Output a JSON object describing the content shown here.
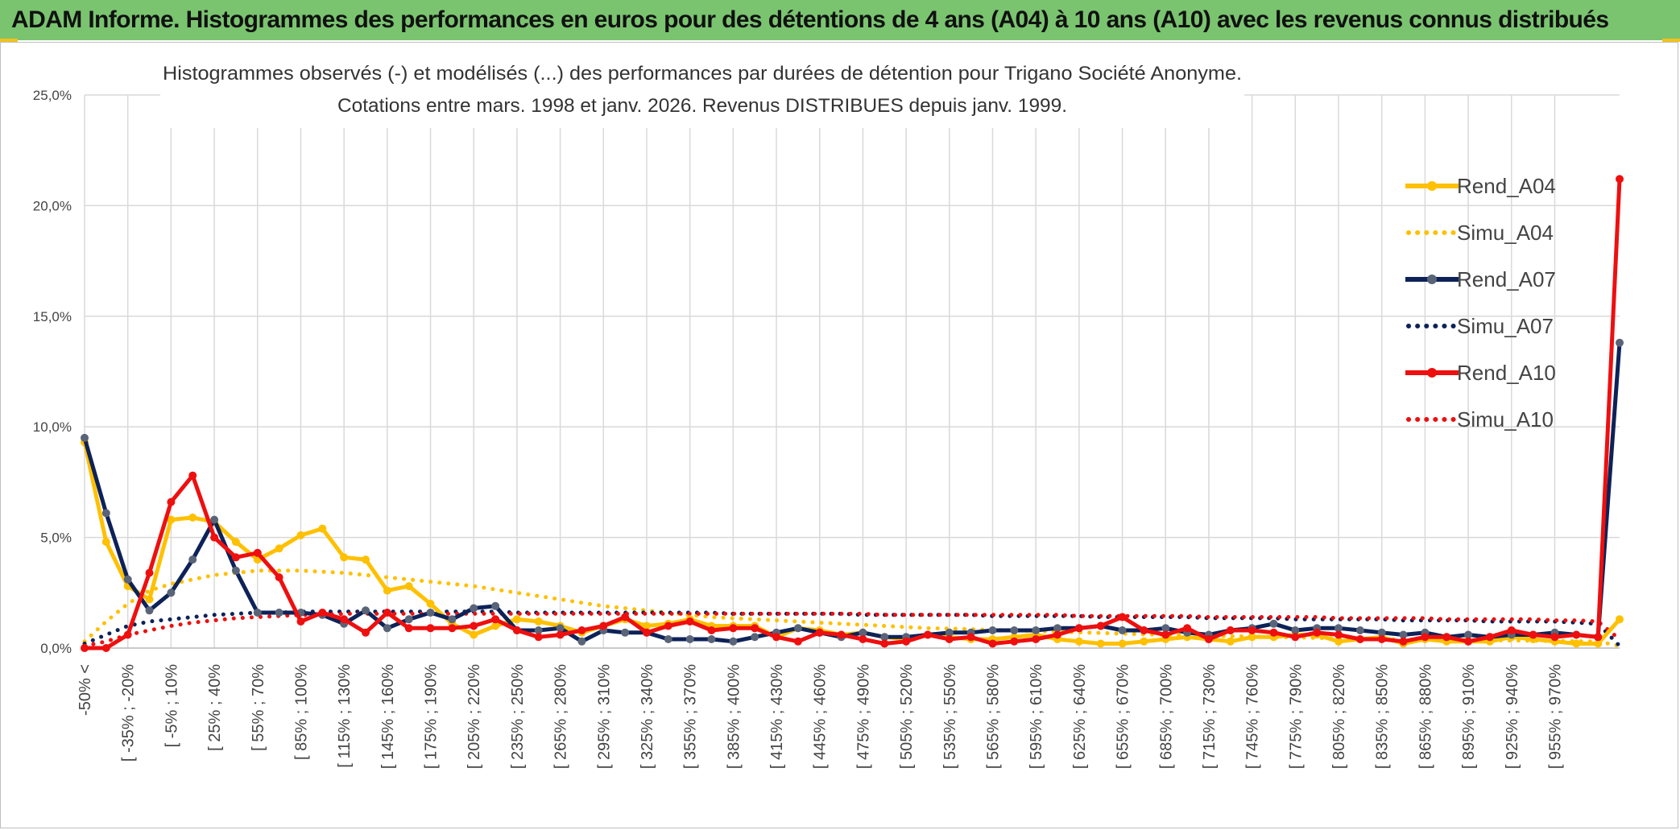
{
  "header": {
    "title": "ADAM Informe. Histogrammes des performances en euros pour des détentions de 4 ans (A04) à 10 ans (A10) avec les revenus connus distribués"
  },
  "colors": {
    "header_band": "#7ac470",
    "A04": "#ffc000",
    "A07": "#0d2258",
    "A10": "#ee0f0f",
    "grid": "#d9d9d9"
  },
  "chart_data": {
    "type": "line",
    "title_line1": "Histogrammes observés (-) et modélisés (...) des performances par durées de détention pour Trigano Société Anonyme.",
    "title_line2": "Cotations entre mars. 1998 et janv. 2026. Revenus DISTRIBUES depuis janv. 1999.",
    "ylim": [
      0,
      25
    ],
    "y_ticks": [
      "0,0%",
      "5,0%",
      "10,0%",
      "15,0%",
      "20,0%",
      "25,0%"
    ],
    "grid": true,
    "legend_position": "right",
    "x_labels_shown": [
      "-50% <",
      "[ -35% ; -20%",
      "[ -5% ; 10%",
      "[ 25% ; 40%",
      "[ 55% ; 70%",
      "[ 85% ; 100%",
      "[ 115% ; 130%",
      "[ 145% ; 160%",
      "[ 175% ; 190%",
      "[ 205% ; 220%",
      "[ 235% ; 250%",
      "[ 265% ; 280%",
      "[ 295% ; 310%",
      "[ 325% ; 340%",
      "[ 355% ; 370%",
      "[ 385% ; 400%",
      "[ 415% ; 430%",
      "[ 445% ; 460%",
      "[ 475% ; 490%",
      "[ 505% ; 520%",
      "[ 535% ; 550%",
      "[ 565% ; 580%",
      "[ 595% ; 610%",
      "[ 625% ; 640%",
      "[ 655% ; 670%",
      "[ 685% ; 700%",
      "[ 715% ; 730%",
      "[ 745% ; 760%",
      "[ 775% ; 790%",
      "[ 805% ; 820%",
      "[ 835% ; 850%",
      "[ 865% ; 880%",
      "[ 895% ; 910%",
      "[ 925% ; 940%",
      "[ 955% ; 970%"
    ],
    "categories_count": 72,
    "series": [
      {
        "name": "Rend_A04",
        "style": "solid",
        "color": "#ffc000",
        "values": [
          9.3,
          4.8,
          2.8,
          2.2,
          5.8,
          5.9,
          5.7,
          4.8,
          4.0,
          4.5,
          5.1,
          5.4,
          4.1,
          4.0,
          2.6,
          2.8,
          2.0,
          1.1,
          0.6,
          1.0,
          1.3,
          1.2,
          1.0,
          0.7,
          1.0,
          1.3,
          1.0,
          1.1,
          1.3,
          1.0,
          1.0,
          1.0,
          0.5,
          0.9,
          0.8,
          0.6,
          0.7,
          0.5,
          0.4,
          0.6,
          0.5,
          0.4,
          0.4,
          0.5,
          0.6,
          0.4,
          0.3,
          0.2,
          0.2,
          0.3,
          0.4,
          0.5,
          0.4,
          0.3,
          0.5,
          0.5,
          0.6,
          0.6,
          0.3,
          0.4,
          0.5,
          0.2,
          0.4,
          0.3,
          0.3,
          0.3,
          0.5,
          0.4,
          0.3,
          0.2,
          0.2,
          1.3
        ]
      },
      {
        "name": "Simu_A04",
        "style": "dotted",
        "color": "#ffc000",
        "values": [
          0.3,
          1.2,
          2.0,
          2.6,
          2.9,
          3.1,
          3.3,
          3.4,
          3.5,
          3.5,
          3.5,
          3.45,
          3.4,
          3.3,
          3.2,
          3.1,
          3.0,
          2.9,
          2.8,
          2.65,
          2.5,
          2.35,
          2.2,
          2.05,
          1.9,
          1.8,
          1.7,
          1.6,
          1.5,
          1.4,
          1.35,
          1.3,
          1.25,
          1.2,
          1.15,
          1.1,
          1.05,
          1.0,
          0.95,
          0.9,
          0.88,
          0.85,
          0.82,
          0.8,
          0.77,
          0.74,
          0.71,
          0.68,
          0.65,
          0.62,
          0.6,
          0.58,
          0.56,
          0.54,
          0.52,
          0.5,
          0.48,
          0.46,
          0.44,
          0.42,
          0.4,
          0.39,
          0.38,
          0.37,
          0.36,
          0.35,
          0.34,
          0.33,
          0.32,
          0.31,
          0.3,
          0.1
        ]
      },
      {
        "name": "Rend_A07",
        "style": "solid",
        "color": "#0d2258",
        "values": [
          9.5,
          6.1,
          3.1,
          1.7,
          2.5,
          4.0,
          5.8,
          3.5,
          1.6,
          1.6,
          1.6,
          1.5,
          1.1,
          1.7,
          0.9,
          1.3,
          1.6,
          1.3,
          1.8,
          1.9,
          0.8,
          0.8,
          0.9,
          0.3,
          0.8,
          0.7,
          0.7,
          0.4,
          0.4,
          0.4,
          0.3,
          0.5,
          0.7,
          0.9,
          0.7,
          0.5,
          0.7,
          0.5,
          0.5,
          0.6,
          0.7,
          0.7,
          0.8,
          0.8,
          0.8,
          0.9,
          0.9,
          1.0,
          0.8,
          0.8,
          0.9,
          0.7,
          0.6,
          0.8,
          0.9,
          1.1,
          0.8,
          0.9,
          0.9,
          0.8,
          0.7,
          0.6,
          0.7,
          0.5,
          0.6,
          0.5,
          0.6,
          0.6,
          0.7,
          0.6,
          0.5,
          13.8
        ]
      },
      {
        "name": "Simu_A07",
        "style": "dotted",
        "color": "#0d2258",
        "values": [
          0.2,
          0.6,
          1.0,
          1.2,
          1.3,
          1.4,
          1.5,
          1.55,
          1.6,
          1.6,
          1.65,
          1.65,
          1.65,
          1.65,
          1.65,
          1.65,
          1.65,
          1.65,
          1.65,
          1.65,
          1.6,
          1.6,
          1.6,
          1.6,
          1.6,
          1.6,
          1.6,
          1.6,
          1.6,
          1.6,
          1.55,
          1.55,
          1.55,
          1.55,
          1.55,
          1.55,
          1.5,
          1.5,
          1.5,
          1.5,
          1.5,
          1.5,
          1.45,
          1.45,
          1.45,
          1.45,
          1.45,
          1.4,
          1.4,
          1.4,
          1.4,
          1.4,
          1.35,
          1.35,
          1.35,
          1.35,
          1.3,
          1.3,
          1.3,
          1.3,
          1.3,
          1.25,
          1.25,
          1.25,
          1.25,
          1.2,
          1.2,
          1.2,
          1.2,
          1.15,
          1.1,
          0.1
        ]
      },
      {
        "name": "Rend_A10",
        "style": "solid",
        "color": "#ee0f0f",
        "values": [
          0.0,
          0.0,
          0.6,
          3.4,
          6.6,
          7.8,
          5.0,
          4.1,
          4.3,
          3.2,
          1.2,
          1.6,
          1.3,
          0.7,
          1.6,
          0.9,
          0.9,
          0.9,
          1.0,
          1.3,
          0.8,
          0.5,
          0.6,
          0.8,
          1.0,
          1.4,
          0.7,
          1.0,
          1.2,
          0.8,
          0.9,
          0.9,
          0.5,
          0.3,
          0.7,
          0.6,
          0.4,
          0.2,
          0.3,
          0.6,
          0.4,
          0.5,
          0.2,
          0.3,
          0.4,
          0.6,
          0.9,
          1.0,
          1.4,
          0.8,
          0.6,
          0.9,
          0.4,
          0.8,
          0.8,
          0.7,
          0.5,
          0.7,
          0.6,
          0.4,
          0.4,
          0.3,
          0.5,
          0.5,
          0.3,
          0.5,
          0.8,
          0.6,
          0.5,
          0.6,
          0.5,
          21.2
        ]
      },
      {
        "name": "Simu_A10",
        "style": "dotted",
        "color": "#ee0f0f",
        "values": [
          0.1,
          0.3,
          0.6,
          0.8,
          1.0,
          1.15,
          1.25,
          1.35,
          1.4,
          1.45,
          1.5,
          1.5,
          1.55,
          1.55,
          1.55,
          1.55,
          1.55,
          1.55,
          1.55,
          1.55,
          1.55,
          1.55,
          1.55,
          1.55,
          1.55,
          1.55,
          1.55,
          1.55,
          1.55,
          1.55,
          1.55,
          1.55,
          1.55,
          1.55,
          1.55,
          1.55,
          1.55,
          1.5,
          1.5,
          1.5,
          1.5,
          1.5,
          1.5,
          1.5,
          1.5,
          1.5,
          1.45,
          1.45,
          1.45,
          1.45,
          1.45,
          1.45,
          1.4,
          1.4,
          1.4,
          1.4,
          1.4,
          1.4,
          1.35,
          1.35,
          1.35,
          1.35,
          1.35,
          1.3,
          1.3,
          1.3,
          1.3,
          1.3,
          1.25,
          1.25,
          1.2,
          0.4
        ]
      }
    ]
  }
}
